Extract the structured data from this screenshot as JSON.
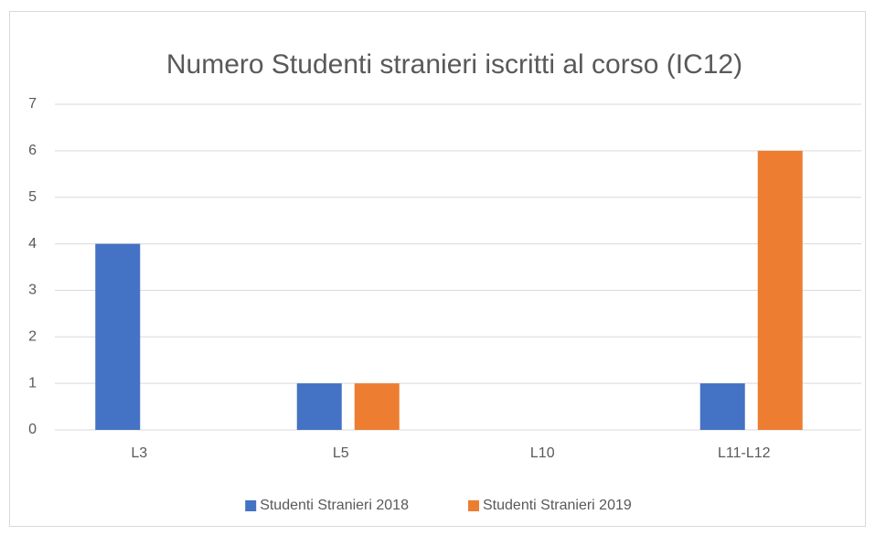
{
  "chart_data": {
    "type": "bar",
    "title": "Numero Studenti stranieri iscritti al corso (IC12)",
    "categories": [
      "L3",
      "L5",
      "L10",
      "L11-L12"
    ],
    "series": [
      {
        "name": "Studenti Stranieri 2018",
        "color": "#4472c4",
        "values": [
          4,
          1,
          0,
          1
        ]
      },
      {
        "name": "Studenti Stranieri 2019",
        "color": "#ed7d31",
        "values": [
          0,
          1,
          0,
          6
        ]
      }
    ],
    "ylim": [
      0,
      7
    ],
    "yticks": [
      0,
      1,
      2,
      3,
      4,
      5,
      6,
      7
    ],
    "grid": true,
    "legend": "bottom"
  }
}
